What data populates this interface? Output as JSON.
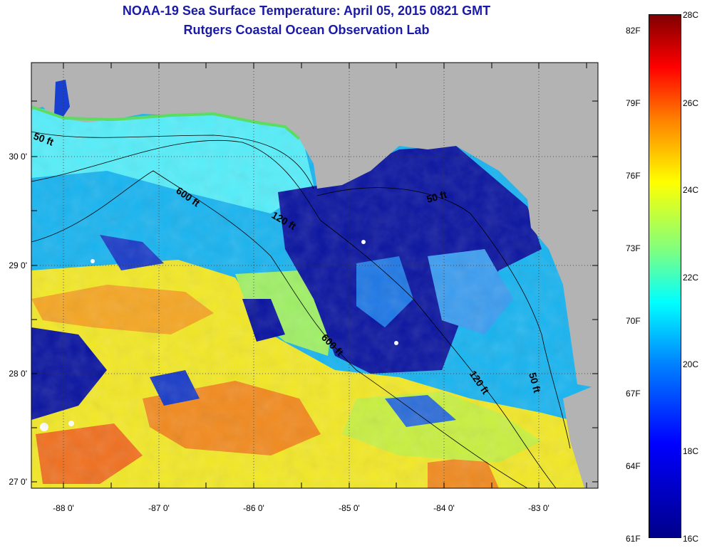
{
  "title": "NOAA-19 Sea Surface Temperature:  April 05, 2015 0821 GMT",
  "subtitle": "Rutgers Coastal Ocean Observation Lab",
  "map": {
    "lat_labels": [
      "30 0'",
      "29 0'",
      "28 0'",
      "27 0'"
    ],
    "lon_labels": [
      "-88 0'",
      "-87 0'",
      "-86 0'",
      "-85 0'",
      "-84 0'",
      "-83 0'"
    ],
    "contour_labels": [
      "50 ft",
      "600 ft",
      "120 ft",
      "50 ft",
      "600 ft",
      "120 ft",
      "50 ft"
    ],
    "land_color": "#b3b3b3",
    "grid_style": "dotted"
  },
  "colorbar": {
    "fahrenheit_labels": [
      "82F",
      "79F",
      "76F",
      "73F",
      "70F",
      "67F",
      "64F",
      "61F"
    ],
    "celsius_labels": [
      "28C",
      "26C",
      "24C",
      "22C",
      "20C",
      "18C",
      "16C"
    ],
    "range_c": [
      16,
      28
    ],
    "range_f": [
      61,
      82
    ]
  }
}
